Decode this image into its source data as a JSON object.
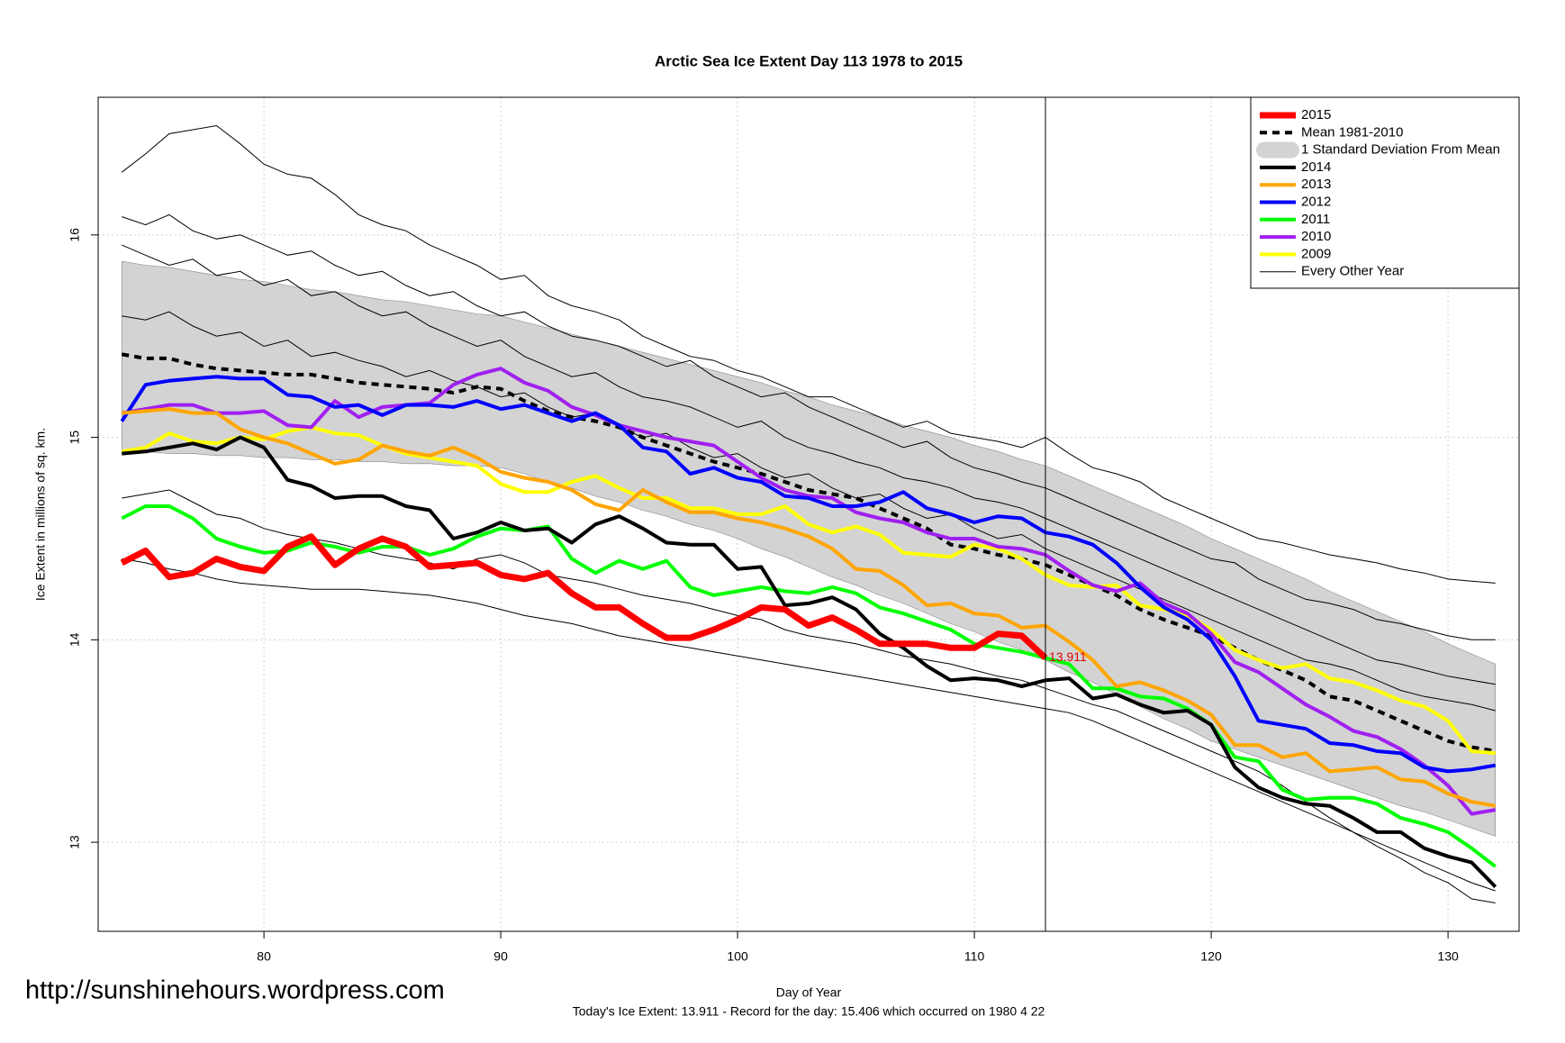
{
  "chart_data": {
    "type": "line",
    "title": "Arctic Sea Ice Extent Day 113 1978 to 2015",
    "x_label": "Day of Year",
    "y_label": "Ice Extent in millions of sq. km.",
    "caption": "Today's Ice Extent: 13.911  - Record for the day: 15.406 which occurred on 1980 4 22",
    "source_url": "http://sunshinehours.wordpress.com",
    "annotation": "13.911",
    "vline": 113,
    "xlim": [
      73,
      133
    ],
    "ylim": [
      12.56,
      16.68
    ],
    "xticks": [
      80,
      90,
      100,
      110,
      120,
      130
    ],
    "yticks": [
      13,
      14,
      15,
      16
    ],
    "grid": true,
    "legend": "top-right",
    "x": [
      74,
      75,
      76,
      77,
      78,
      79,
      80,
      81,
      82,
      83,
      84,
      85,
      86,
      87,
      88,
      89,
      90,
      91,
      92,
      93,
      94,
      95,
      96,
      97,
      98,
      99,
      100,
      101,
      102,
      103,
      104,
      105,
      106,
      107,
      108,
      109,
      110,
      111,
      112,
      113,
      114,
      115,
      116,
      117,
      118,
      119,
      120,
      121,
      122,
      123,
      124,
      125,
      126,
      127,
      128,
      129,
      130,
      131,
      132
    ],
    "band": {
      "name": "1 Standard Deviation From Mean",
      "color": "#d3d3d3",
      "upper": [
        15.87,
        15.85,
        15.84,
        15.82,
        15.8,
        15.78,
        15.77,
        15.75,
        15.73,
        15.72,
        15.7,
        15.68,
        15.67,
        15.65,
        15.63,
        15.61,
        15.6,
        15.57,
        15.54,
        15.51,
        15.48,
        15.45,
        15.42,
        15.39,
        15.36,
        15.33,
        15.3,
        15.27,
        15.23,
        15.2,
        15.16,
        15.13,
        15.1,
        15.06,
        15.03,
        15.0,
        14.96,
        14.93,
        14.89,
        14.86,
        14.81,
        14.76,
        14.71,
        14.66,
        14.61,
        14.56,
        14.5,
        14.45,
        14.4,
        14.35,
        14.3,
        14.24,
        14.19,
        14.14,
        14.09,
        14.04,
        13.98,
        13.93,
        13.88
      ],
      "lower": [
        14.93,
        14.93,
        14.92,
        14.92,
        14.91,
        14.91,
        14.9,
        14.9,
        14.89,
        14.89,
        14.88,
        14.88,
        14.87,
        14.87,
        14.86,
        14.86,
        14.85,
        14.82,
        14.78,
        14.75,
        14.71,
        14.68,
        14.64,
        14.61,
        14.57,
        14.54,
        14.5,
        14.45,
        14.41,
        14.36,
        14.31,
        14.27,
        14.22,
        14.18,
        14.13,
        14.08,
        14.04,
        13.99,
        13.95,
        13.9,
        13.84,
        13.79,
        13.73,
        13.67,
        13.61,
        13.56,
        13.5,
        13.46,
        13.42,
        13.38,
        13.34,
        13.3,
        13.26,
        13.22,
        13.18,
        13.15,
        13.11,
        13.07,
        13.03
      ]
    },
    "mean": {
      "name": "Mean 1981-2010",
      "color": "#000000",
      "values": [
        15.41,
        15.39,
        15.39,
        15.36,
        15.34,
        15.33,
        15.32,
        15.31,
        15.31,
        15.29,
        15.27,
        15.26,
        15.25,
        15.24,
        15.22,
        15.25,
        15.24,
        15.18,
        15.13,
        15.1,
        15.08,
        15.05,
        15.0,
        14.96,
        14.92,
        14.88,
        14.85,
        14.82,
        14.78,
        14.74,
        14.72,
        14.7,
        14.65,
        14.6,
        14.55,
        14.47,
        14.45,
        14.42,
        14.4,
        14.37,
        14.32,
        14.27,
        14.22,
        14.15,
        14.1,
        14.06,
        14.02,
        13.96,
        13.9,
        13.85,
        13.8,
        13.72,
        13.7,
        13.65,
        13.6,
        13.55,
        13.5,
        13.47,
        13.45
      ]
    },
    "series": [
      {
        "name": "2015",
        "color": "#ff0000",
        "values": [
          14.38,
          14.44,
          14.31,
          14.33,
          14.4,
          14.36,
          14.34,
          14.46,
          14.51,
          14.37,
          14.45,
          14.5,
          14.46,
          14.36,
          14.37,
          14.38,
          14.32,
          14.3,
          14.33,
          14.23,
          14.16,
          14.16,
          14.08,
          14.01,
          14.01,
          14.05,
          14.1,
          14.16,
          14.15,
          14.07,
          14.11,
          14.05,
          13.98,
          13.98,
          13.98,
          13.96,
          13.96,
          14.03,
          14.02,
          13.911,
          null,
          null,
          null,
          null,
          null,
          null,
          null,
          null,
          null,
          null,
          null,
          null,
          null,
          null,
          null,
          null,
          null,
          null,
          null
        ]
      },
      {
        "name": "2014",
        "color": "#000000",
        "values": [
          14.92,
          14.93,
          14.95,
          14.97,
          14.94,
          15.0,
          14.95,
          14.79,
          14.76,
          14.7,
          14.71,
          14.71,
          14.66,
          14.64,
          14.5,
          14.53,
          14.58,
          14.54,
          14.55,
          14.48,
          14.57,
          14.61,
          14.55,
          14.48,
          14.47,
          14.47,
          14.35,
          14.36,
          14.17,
          14.18,
          14.21,
          14.15,
          14.03,
          13.96,
          13.87,
          13.8,
          13.81,
          13.8,
          13.77,
          13.8,
          13.81,
          13.71,
          13.73,
          13.68,
          13.64,
          13.65,
          13.58,
          13.37,
          13.27,
          13.22,
          13.19,
          13.18,
          13.12,
          13.05,
          13.05,
          12.97,
          12.93,
          12.9,
          12.78
        ]
      },
      {
        "name": "2013",
        "color": "#ffa500",
        "values": [
          15.12,
          15.13,
          15.14,
          15.12,
          15.12,
          15.04,
          15.0,
          14.97,
          14.92,
          14.87,
          14.89,
          14.96,
          14.93,
          14.91,
          14.95,
          14.9,
          14.83,
          14.8,
          14.78,
          14.74,
          14.67,
          14.64,
          14.74,
          14.68,
          14.63,
          14.63,
          14.6,
          14.58,
          14.55,
          14.51,
          14.45,
          14.35,
          14.34,
          14.27,
          14.17,
          14.18,
          14.13,
          14.12,
          14.06,
          14.07,
          13.99,
          13.9,
          13.77,
          13.79,
          13.75,
          13.7,
          13.63,
          13.48,
          13.48,
          13.42,
          13.44,
          13.35,
          13.36,
          13.37,
          13.31,
          13.3,
          13.24,
          13.2,
          13.18
        ]
      },
      {
        "name": "2012",
        "color": "#0000ff",
        "values": [
          15.08,
          15.26,
          15.28,
          15.29,
          15.3,
          15.29,
          15.29,
          15.21,
          15.2,
          15.15,
          15.16,
          15.11,
          15.16,
          15.16,
          15.15,
          15.18,
          15.14,
          15.16,
          15.12,
          15.08,
          15.12,
          15.06,
          14.95,
          14.93,
          14.82,
          14.85,
          14.8,
          14.78,
          14.71,
          14.7,
          14.66,
          14.66,
          14.68,
          14.73,
          14.65,
          14.62,
          14.58,
          14.61,
          14.6,
          14.53,
          14.51,
          14.47,
          14.38,
          14.26,
          14.16,
          14.1,
          14.0,
          13.82,
          13.6,
          13.58,
          13.56,
          13.49,
          13.48,
          13.45,
          13.44,
          13.37,
          13.35,
          13.36,
          13.38
        ]
      },
      {
        "name": "2011",
        "color": "#00ff00",
        "values": [
          14.6,
          14.66,
          14.66,
          14.6,
          14.5,
          14.46,
          14.43,
          14.44,
          14.48,
          14.46,
          14.43,
          14.46,
          14.46,
          14.42,
          14.45,
          14.51,
          14.55,
          14.54,
          14.56,
          14.4,
          14.33,
          14.39,
          14.35,
          14.39,
          14.26,
          14.22,
          14.24,
          14.26,
          14.24,
          14.23,
          14.26,
          14.23,
          14.16,
          14.13,
          14.09,
          14.05,
          13.98,
          13.96,
          13.94,
          13.91,
          13.88,
          13.76,
          13.76,
          13.72,
          13.71,
          13.66,
          13.58,
          13.42,
          13.4,
          13.26,
          13.21,
          13.22,
          13.22,
          13.19,
          13.12,
          13.09,
          13.05,
          12.97,
          12.88
        ]
      },
      {
        "name": "2010",
        "color": "#a020f0",
        "values": [
          15.12,
          15.14,
          15.16,
          15.16,
          15.12,
          15.12,
          15.13,
          15.06,
          15.05,
          15.18,
          15.1,
          15.15,
          15.16,
          15.17,
          15.26,
          15.31,
          15.34,
          15.27,
          15.23,
          15.15,
          15.11,
          15.06,
          15.03,
          15.0,
          14.98,
          14.96,
          14.88,
          14.8,
          14.74,
          14.71,
          14.7,
          14.63,
          14.6,
          14.58,
          14.53,
          14.5,
          14.5,
          14.46,
          14.45,
          14.42,
          14.34,
          14.27,
          14.24,
          14.28,
          14.18,
          14.13,
          14.03,
          13.89,
          13.84,
          13.76,
          13.68,
          13.62,
          13.55,
          13.52,
          13.46,
          13.38,
          13.28,
          13.14,
          13.16
        ]
      },
      {
        "name": "2009",
        "color": "#ffff00",
        "values": [
          14.93,
          14.95,
          15.02,
          14.98,
          14.97,
          15.0,
          14.99,
          15.03,
          15.05,
          15.02,
          15.01,
          14.96,
          14.92,
          14.9,
          14.88,
          14.86,
          14.77,
          14.73,
          14.73,
          14.78,
          14.81,
          14.75,
          14.7,
          14.7,
          14.65,
          14.65,
          14.62,
          14.62,
          14.66,
          14.57,
          14.53,
          14.56,
          14.52,
          14.43,
          14.42,
          14.41,
          14.47,
          14.45,
          14.4,
          14.32,
          14.27,
          14.26,
          14.27,
          14.17,
          14.15,
          14.12,
          14.05,
          13.95,
          13.9,
          13.86,
          13.88,
          13.81,
          13.79,
          13.75,
          13.7,
          13.67,
          13.6,
          13.45,
          13.44
        ]
      }
    ],
    "other_years": {
      "name": "Every Other Year",
      "color": "#000000",
      "lines": [
        [
          16.31,
          16.4,
          16.5,
          16.52,
          16.54,
          16.45,
          16.35,
          16.3,
          16.28,
          16.2,
          16.1,
          16.05,
          16.02,
          15.95,
          15.9,
          15.85,
          15.78,
          15.8,
          15.7,
          15.65,
          15.62,
          15.58,
          15.5,
          15.45,
          15.4,
          15.38,
          15.33,
          15.3,
          15.25,
          15.2,
          15.2,
          15.15,
          15.1,
          15.05,
          15.08,
          15.02,
          15.0,
          14.98,
          14.95,
          15.0,
          14.92,
          14.85,
          14.82,
          14.78,
          14.7,
          14.65,
          14.6,
          14.55,
          14.5,
          14.48,
          14.45,
          14.42,
          14.4,
          14.38,
          14.35,
          14.33,
          14.3,
          14.29,
          14.28
        ],
        [
          16.09,
          16.05,
          16.1,
          16.02,
          15.98,
          16.0,
          15.95,
          15.9,
          15.92,
          15.85,
          15.8,
          15.82,
          15.75,
          15.7,
          15.72,
          15.65,
          15.6,
          15.62,
          15.55,
          15.5,
          15.48,
          15.45,
          15.4,
          15.35,
          15.38,
          15.3,
          15.25,
          15.2,
          15.22,
          15.15,
          15.1,
          15.05,
          15.0,
          14.95,
          14.98,
          14.9,
          14.85,
          14.82,
          14.78,
          14.75,
          14.7,
          14.65,
          14.6,
          14.55,
          14.5,
          14.45,
          14.4,
          14.38,
          14.3,
          14.25,
          14.2,
          14.18,
          14.15,
          14.1,
          14.08,
          14.05,
          14.02,
          14.0,
          14.0
        ],
        [
          15.6,
          15.58,
          15.62,
          15.55,
          15.5,
          15.52,
          15.45,
          15.48,
          15.4,
          15.42,
          15.38,
          15.35,
          15.3,
          15.33,
          15.28,
          15.25,
          15.2,
          15.22,
          15.15,
          15.1,
          15.12,
          15.05,
          15.0,
          15.02,
          14.95,
          14.9,
          14.92,
          14.85,
          14.8,
          14.82,
          14.75,
          14.7,
          14.72,
          14.65,
          14.6,
          14.62,
          14.55,
          14.5,
          14.52,
          14.45,
          14.4,
          14.35,
          14.3,
          14.25,
          14.2,
          14.15,
          14.1,
          14.05,
          14.0,
          13.95,
          13.9,
          13.88,
          13.85,
          13.8,
          13.75,
          13.72,
          13.7,
          13.68,
          13.65
        ],
        [
          14.7,
          14.72,
          14.74,
          14.68,
          14.62,
          14.6,
          14.55,
          14.52,
          14.5,
          14.48,
          14.45,
          14.42,
          14.4,
          14.38,
          14.35,
          14.4,
          14.42,
          14.38,
          14.32,
          14.3,
          14.28,
          14.25,
          14.22,
          14.2,
          14.18,
          14.15,
          14.12,
          14.1,
          14.05,
          14.02,
          14.0,
          13.98,
          13.95,
          13.92,
          13.9,
          13.88,
          13.85,
          13.82,
          13.8,
          13.76,
          13.72,
          13.68,
          13.65,
          13.6,
          13.55,
          13.5,
          13.45,
          13.4,
          13.35,
          13.28,
          13.2,
          13.12,
          13.05,
          12.98,
          12.92,
          12.85,
          12.8,
          12.72,
          12.7
        ],
        [
          14.4,
          14.38,
          14.35,
          14.33,
          14.3,
          14.28,
          14.27,
          14.26,
          14.25,
          14.25,
          14.25,
          14.24,
          14.23,
          14.22,
          14.2,
          14.18,
          14.15,
          14.12,
          14.1,
          14.08,
          14.05,
          14.02,
          14.0,
          13.98,
          13.96,
          13.94,
          13.92,
          13.9,
          13.88,
          13.86,
          13.84,
          13.82,
          13.8,
          13.78,
          13.76,
          13.74,
          13.72,
          13.7,
          13.68,
          13.66,
          13.64,
          13.6,
          13.55,
          13.5,
          13.45,
          13.4,
          13.35,
          13.3,
          13.25,
          13.2,
          13.15,
          13.1,
          13.05,
          13.0,
          12.95,
          12.9,
          12.85,
          12.8,
          12.76
        ],
        [
          15.95,
          15.9,
          15.85,
          15.88,
          15.8,
          15.82,
          15.75,
          15.78,
          15.7,
          15.72,
          15.65,
          15.6,
          15.62,
          15.55,
          15.5,
          15.45,
          15.48,
          15.4,
          15.35,
          15.3,
          15.32,
          15.25,
          15.2,
          15.18,
          15.15,
          15.1,
          15.05,
          15.08,
          15.0,
          14.95,
          14.92,
          14.88,
          14.85,
          14.8,
          14.78,
          14.75,
          14.7,
          14.68,
          14.65,
          14.6,
          14.55,
          14.5,
          14.45,
          14.4,
          14.35,
          14.3,
          14.25,
          14.2,
          14.15,
          14.1,
          14.05,
          14.0,
          13.95,
          13.9,
          13.88,
          13.85,
          13.82,
          13.8,
          13.78
        ]
      ]
    }
  }
}
